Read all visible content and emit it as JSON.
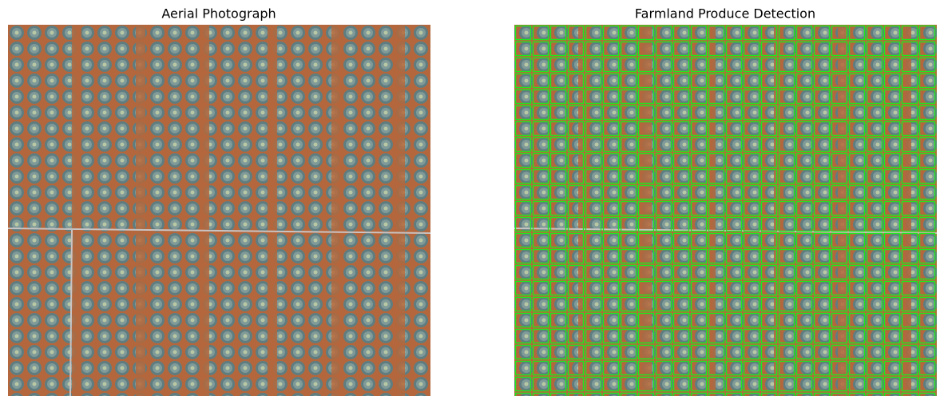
{
  "panels": [
    {
      "title": "Aerial Photograph"
    },
    {
      "title": "Farmland Produce Detection"
    }
  ]
}
